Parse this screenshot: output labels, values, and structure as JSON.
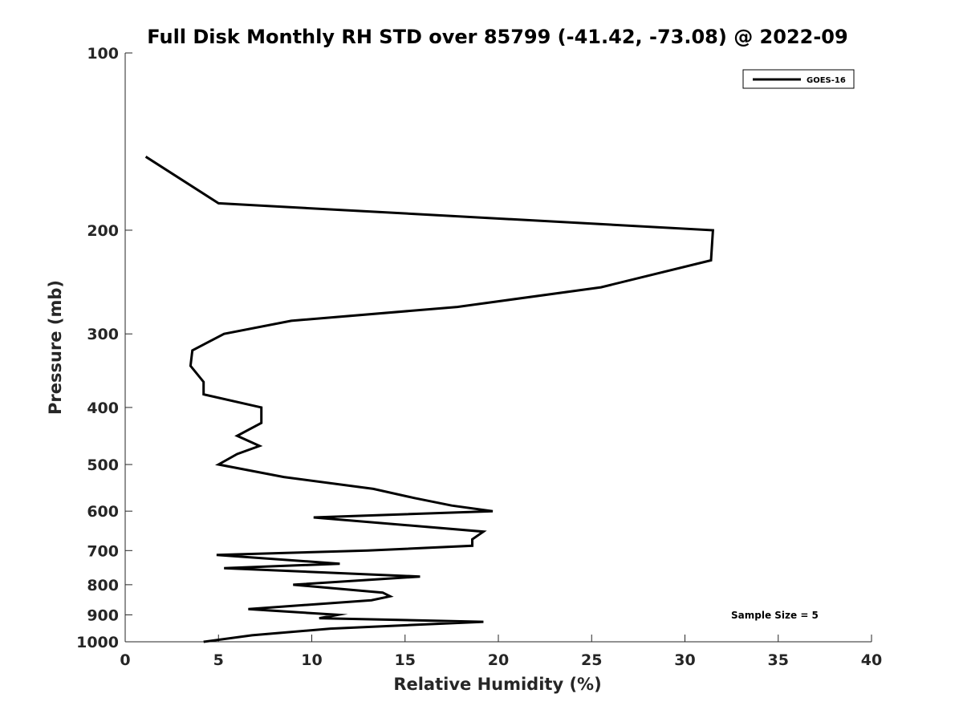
{
  "chart_data": {
    "type": "line",
    "title": "Full Disk Monthly RH STD over 85799 (-41.42, -73.08) @ 2022-09",
    "xlabel": "Relative Humidity (%)",
    "ylabel": "Pressure (mb)",
    "xlim": [
      0,
      40
    ],
    "ylim": [
      100,
      1000
    ],
    "y_scale": "log",
    "y_reversed": true,
    "x_ticks": [
      "0",
      "5",
      "10",
      "15",
      "20",
      "25",
      "30",
      "35",
      "40"
    ],
    "y_ticks": [
      "100",
      "200",
      "300",
      "400",
      "500",
      "600",
      "700",
      "800",
      "900",
      "1000"
    ],
    "grid": false,
    "legend_position": "top-right",
    "annotation": "Sample Size = 5",
    "series": [
      {
        "name": "GOES-16",
        "color": "#000000",
        "points": [
          [
            1.1,
            150
          ],
          [
            5.0,
            180
          ],
          [
            31.5,
            200
          ],
          [
            31.4,
            225
          ],
          [
            25.5,
            250
          ],
          [
            17.8,
            270
          ],
          [
            8.9,
            285
          ],
          [
            5.3,
            300
          ],
          [
            3.6,
            320
          ],
          [
            3.5,
            340
          ],
          [
            4.2,
            362
          ],
          [
            4.2,
            380
          ],
          [
            7.3,
            400
          ],
          [
            7.3,
            425
          ],
          [
            6.0,
            447
          ],
          [
            7.2,
            465
          ],
          [
            6.0,
            480
          ],
          [
            5.0,
            500
          ],
          [
            8.5,
            525
          ],
          [
            13.3,
            550
          ],
          [
            15.5,
            570
          ],
          [
            17.5,
            587
          ],
          [
            19.7,
            600
          ],
          [
            10.1,
            615
          ],
          [
            19.2,
            650
          ],
          [
            18.6,
            670
          ],
          [
            18.6,
            687
          ],
          [
            13.0,
            700
          ],
          [
            4.9,
            712
          ],
          [
            11.5,
            737
          ],
          [
            5.3,
            750
          ],
          [
            15.8,
            775
          ],
          [
            9.0,
            800
          ],
          [
            13.8,
            825
          ],
          [
            14.2,
            837
          ],
          [
            13.2,
            850
          ],
          [
            6.6,
            880
          ],
          [
            11.4,
            900
          ],
          [
            10.4,
            912
          ],
          [
            19.2,
            925
          ],
          [
            11.0,
            950
          ],
          [
            6.8,
            975
          ],
          [
            4.2,
            1000
          ]
        ]
      }
    ]
  }
}
